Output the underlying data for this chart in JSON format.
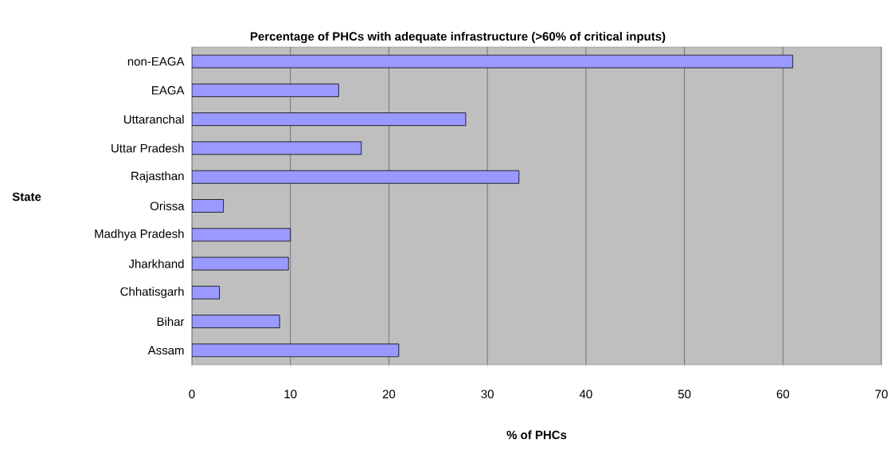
{
  "chart_data": {
    "type": "bar",
    "orientation": "horizontal",
    "title": "Percentage of PHCs with adequate infrastructure (>60% of critical inputs)",
    "xlabel": "% of PHCs",
    "ylabel": "State",
    "categories": [
      "non-EAGA",
      "EAGA",
      "Uttaranchal",
      "Uttar Pradesh",
      "Rajasthan",
      "Orissa",
      "Madhya Pradesh",
      "Jharkhand",
      "Chhatisgarh",
      "Bihar",
      "Assam"
    ],
    "values": [
      61.0,
      14.9,
      27.8,
      17.2,
      33.2,
      3.2,
      10.0,
      9.8,
      2.8,
      8.9,
      21.0
    ],
    "color": "#9999ff",
    "xlim": [
      0,
      70
    ],
    "xticks": [
      0,
      10,
      20,
      30,
      40,
      50,
      60,
      70
    ],
    "grid": "x"
  }
}
